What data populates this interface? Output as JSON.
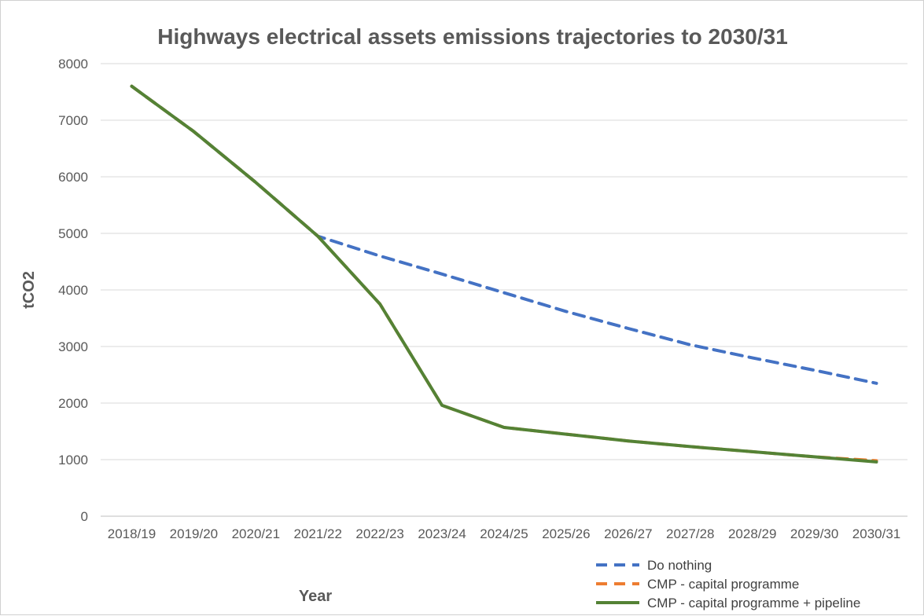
{
  "chart_data": {
    "type": "line",
    "title": "Highways electrical assets emissions trajectories to 2030/31",
    "xlabel": "Year",
    "ylabel": "tCO2",
    "ylim": [
      0,
      8000
    ],
    "yticks": [
      0,
      1000,
      2000,
      3000,
      4000,
      5000,
      6000,
      7000,
      8000
    ],
    "grid": true,
    "legend_position": "bottom-right",
    "categories": [
      "2018/19",
      "2019/20",
      "2020/21",
      "2021/22",
      "2022/23",
      "2023/24",
      "2024/25",
      "2025/26",
      "2026/27",
      "2027/28",
      "2028/29",
      "2029/30",
      "2030/31"
    ],
    "series": [
      {
        "name": "Do nothing",
        "color": "#4472c4",
        "style": "dashed",
        "values": [
          7600,
          6800,
          5900,
          4950,
          4600,
          4280,
          3950,
          3620,
          3320,
          3030,
          2800,
          2580,
          2350
        ]
      },
      {
        "name": "CMP - capital programme",
        "color": "#ed7d31",
        "style": "dashed",
        "values": [
          7600,
          6800,
          5900,
          4950,
          3750,
          1960,
          1570,
          1450,
          1330,
          1230,
          1140,
          1050,
          980
        ]
      },
      {
        "name": "CMP - capital programme + pipeline",
        "color": "#548235",
        "style": "solid",
        "values": [
          7600,
          6800,
          5900,
          4950,
          3750,
          1960,
          1570,
          1450,
          1330,
          1230,
          1140,
          1050,
          960
        ]
      }
    ]
  }
}
